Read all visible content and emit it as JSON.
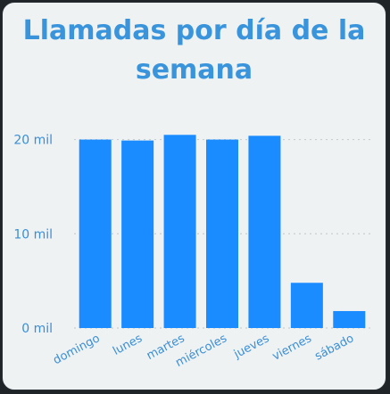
{
  "chart_data": {
    "type": "bar",
    "title": "Llamadas por día de la semana",
    "xlabel": "",
    "ylabel": "",
    "categories": [
      "domingo",
      "lunes",
      "martes",
      "miércoles",
      "jueves",
      "viernes",
      "sábado"
    ],
    "values": [
      20000,
      19900,
      20500,
      20000,
      20400,
      4800,
      1800
    ],
    "ylim": [
      0,
      21000
    ],
    "yticks": [
      {
        "value": 0,
        "label": "0 mil"
      },
      {
        "value": 10000,
        "label": "10 mil"
      },
      {
        "value": 20000,
        "label": "20 mil"
      }
    ],
    "grid": "horizontal-dotted",
    "legend": "none",
    "bar_color": "#1a8cff",
    "title_color": "#3a94dc",
    "label_color": "#3a8ed6",
    "grid_color": "#c9ced1"
  }
}
